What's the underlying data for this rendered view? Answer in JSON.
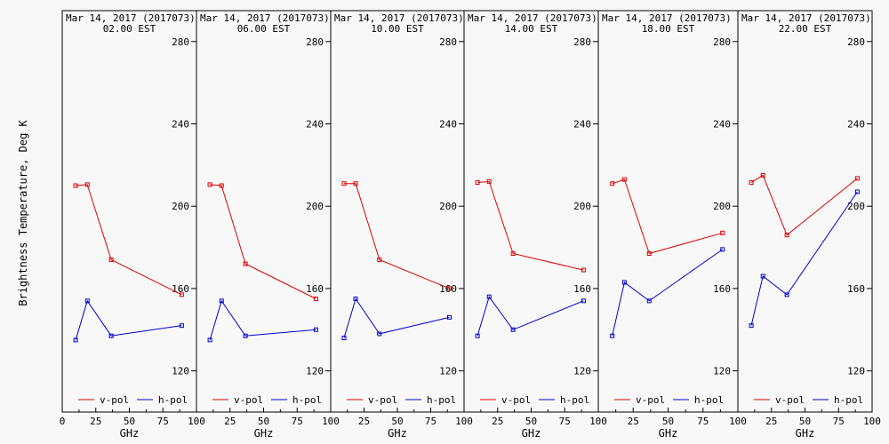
{
  "chart_data": {
    "type": "line",
    "ylabel": "Brightness Temperature, Deg K",
    "xlabel": "GHz",
    "xlim": [
      0,
      100
    ],
    "ylim": [
      100,
      295
    ],
    "yticks": [
      120,
      160,
      200,
      240,
      280
    ],
    "xticks_first": [
      "0",
      "25",
      "50",
      "75",
      "100"
    ],
    "xticks_rest": [
      "25",
      "50",
      "75",
      "100"
    ],
    "legend": {
      "placement": "bottom",
      "v_label": "v-pol",
      "h_label": "h-pol"
    },
    "colors": {
      "v": "#dd0000",
      "h": "#0000cc"
    },
    "panels": [
      {
        "title": "Mar 14, 2017 (2017073)",
        "subtitle": "02.00 EST",
        "series": [
          {
            "name": "v-pol",
            "points": [
              [
                10,
                210
              ],
              [
                18.7,
                210.5
              ],
              [
                36.5,
                174
              ],
              [
                89,
                157
              ]
            ]
          },
          {
            "name": "h-pol",
            "points": [
              [
                10,
                135
              ],
              [
                18.7,
                154
              ],
              [
                36.5,
                137
              ],
              [
                89,
                142
              ]
            ]
          }
        ]
      },
      {
        "title": "Mar 14, 2017 (2017073)",
        "subtitle": "06.00 EST",
        "series": [
          {
            "name": "v-pol",
            "points": [
              [
                10,
                210.5
              ],
              [
                18.7,
                210
              ],
              [
                36.5,
                172
              ],
              [
                89,
                155
              ]
            ]
          },
          {
            "name": "h-pol",
            "points": [
              [
                10,
                135
              ],
              [
                18.7,
                154
              ],
              [
                36.5,
                137
              ],
              [
                89,
                140
              ]
            ]
          }
        ]
      },
      {
        "title": "Mar 14, 2017 (2017073)",
        "subtitle": "10.00 EST",
        "series": [
          {
            "name": "v-pol",
            "points": [
              [
                10,
                211
              ],
              [
                18.7,
                211
              ],
              [
                36.5,
                174
              ],
              [
                89,
                160
              ]
            ]
          },
          {
            "name": "h-pol",
            "points": [
              [
                10,
                136
              ],
              [
                18.7,
                155
              ],
              [
                36.5,
                138
              ],
              [
                89,
                146
              ]
            ]
          }
        ]
      },
      {
        "title": "Mar 14, 2017 (2017073)",
        "subtitle": "14.00 EST",
        "series": [
          {
            "name": "v-pol",
            "points": [
              [
                10,
                211.5
              ],
              [
                18.7,
                212
              ],
              [
                36.5,
                177
              ],
              [
                89,
                169
              ]
            ]
          },
          {
            "name": "h-pol",
            "points": [
              [
                10,
                137
              ],
              [
                18.7,
                156
              ],
              [
                36.5,
                140
              ],
              [
                89,
                154
              ]
            ]
          }
        ]
      },
      {
        "title": "Mar 14, 2017 (2017073)",
        "subtitle": "18.00 EST",
        "series": [
          {
            "name": "v-pol",
            "points": [
              [
                10,
                211
              ],
              [
                18.7,
                213
              ],
              [
                36.5,
                177
              ],
              [
                89,
                187
              ]
            ]
          },
          {
            "name": "h-pol",
            "points": [
              [
                10,
                137
              ],
              [
                18.7,
                163
              ],
              [
                36.5,
                154
              ],
              [
                89,
                179
              ]
            ]
          }
        ]
      },
      {
        "title": "Mar 14, 2017 (2017073)",
        "subtitle": "22.00 EST",
        "series": [
          {
            "name": "v-pol",
            "points": [
              [
                10,
                211.5
              ],
              [
                18.7,
                215
              ],
              [
                36.5,
                186
              ],
              [
                89,
                213.5
              ]
            ]
          },
          {
            "name": "h-pol",
            "points": [
              [
                10,
                142
              ],
              [
                18.7,
                166
              ],
              [
                36.5,
                157
              ],
              [
                89,
                207
              ]
            ]
          }
        ]
      }
    ]
  }
}
